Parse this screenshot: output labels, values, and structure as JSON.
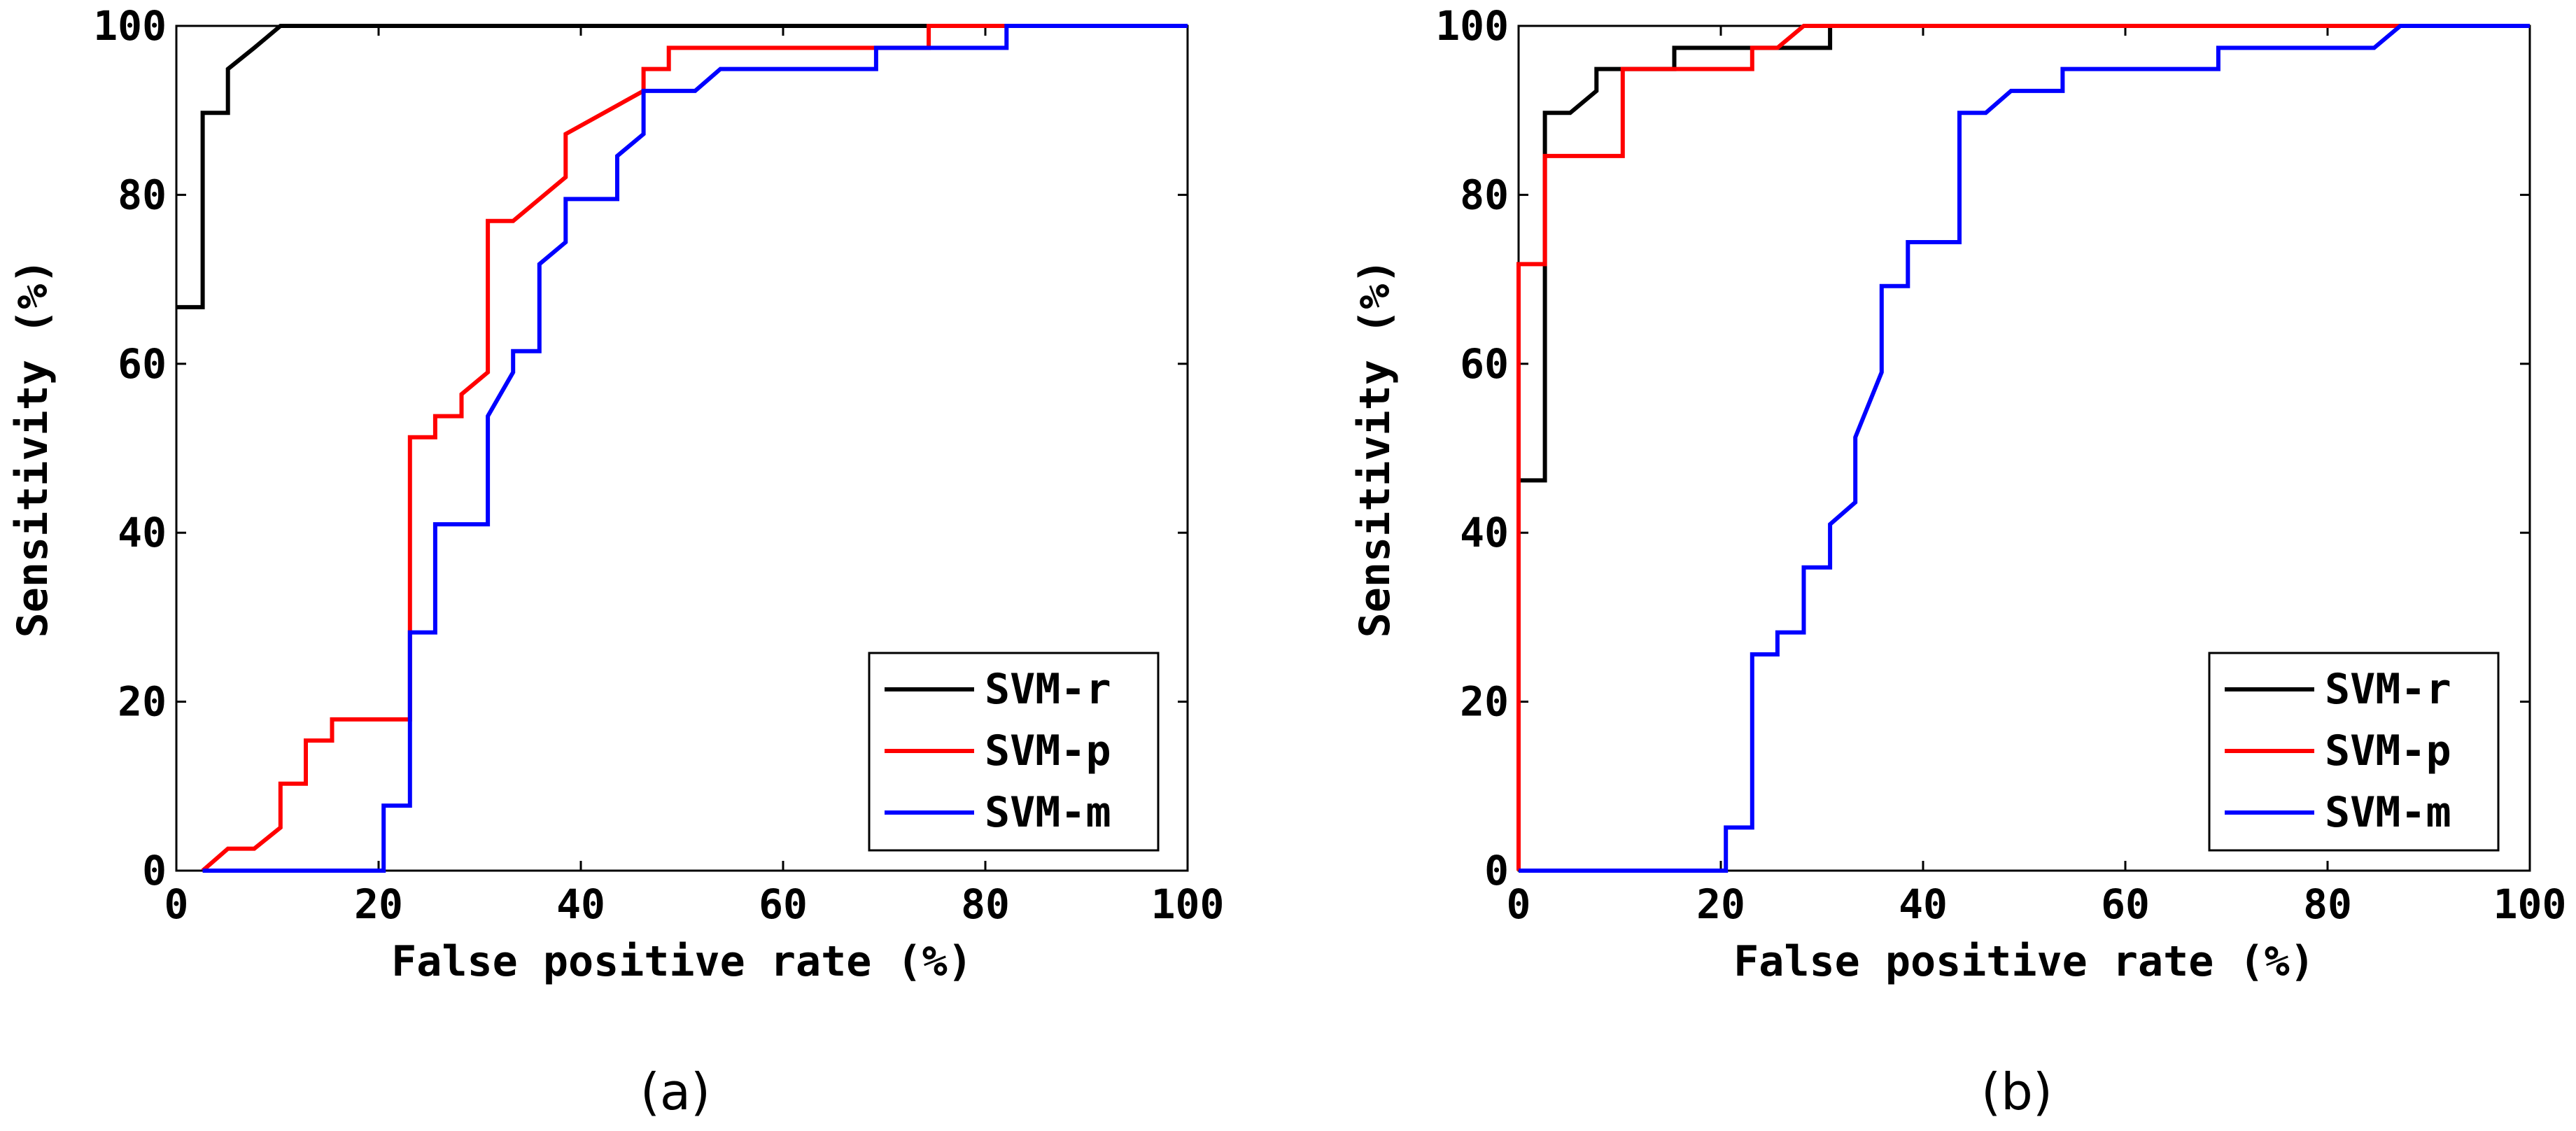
{
  "chart_data": [
    {
      "type": "line",
      "caption": "(a)",
      "xlabel": "False positive rate (%)",
      "ylabel": "Sensitivity (%)",
      "xlim": [
        0,
        100
      ],
      "ylim": [
        0,
        100
      ],
      "xticks": [
        "0",
        "20",
        "40",
        "60",
        "80",
        "100"
      ],
      "yticks": [
        "0",
        "20",
        "40",
        "60",
        "80",
        "100"
      ],
      "legend_position": "bottom-right",
      "series": [
        {
          "name": "SVM-r",
          "color": "#000000",
          "x": [
            0,
            2.6,
            2.6,
            5.1,
            5.1,
            7.7,
            10.3,
            74.4,
            100
          ],
          "y": [
            66.7,
            66.7,
            89.7,
            89.7,
            94.9,
            97.4,
            100,
            100,
            100
          ]
        },
        {
          "name": "SVM-p",
          "color": "#ff0000",
          "x": [
            2.6,
            5.1,
            7.7,
            10.3,
            10.3,
            12.8,
            12.8,
            15.4,
            15.4,
            23.1,
            23.1,
            25.6,
            25.6,
            28.2,
            28.2,
            30.8,
            30.8,
            33.3,
            38.5,
            38.5,
            46.2,
            46.2,
            48.7,
            48.7,
            74.4,
            74.4,
            100
          ],
          "y": [
            0,
            2.6,
            2.6,
            5.1,
            10.3,
            10.3,
            15.4,
            15.4,
            17.9,
            17.9,
            51.3,
            51.3,
            53.8,
            53.8,
            56.4,
            59.0,
            76.9,
            76.9,
            82.1,
            87.2,
            92.3,
            94.9,
            94.9,
            97.4,
            97.4,
            100,
            100
          ]
        },
        {
          "name": "SVM-m",
          "color": "#0000ff",
          "x": [
            2.6,
            20.5,
            20.5,
            23.1,
            23.1,
            25.6,
            25.6,
            30.8,
            30.8,
            33.3,
            33.3,
            35.9,
            35.9,
            38.5,
            38.5,
            43.6,
            43.6,
            46.2,
            46.2,
            51.3,
            53.8,
            69.2,
            69.2,
            82.1,
            82.1,
            100
          ],
          "y": [
            0,
            0,
            7.7,
            7.7,
            28.2,
            28.2,
            41.0,
            41.0,
            53.8,
            59.0,
            61.5,
            61.5,
            71.8,
            74.4,
            79.5,
            79.5,
            84.6,
            87.2,
            92.3,
            92.3,
            94.9,
            94.9,
            97.4,
            97.4,
            100,
            100
          ]
        }
      ]
    },
    {
      "type": "line",
      "caption": "(b)",
      "xlabel": "False positive rate (%)",
      "ylabel": "Sensitivity (%)",
      "xlim": [
        0,
        100
      ],
      "ylim": [
        0,
        100
      ],
      "xticks": [
        "0",
        "20",
        "40",
        "60",
        "80",
        "100"
      ],
      "yticks": [
        "0",
        "20",
        "40",
        "60",
        "80",
        "100"
      ],
      "legend_position": "bottom-right",
      "series": [
        {
          "name": "SVM-r",
          "color": "#000000",
          "x": [
            0,
            0,
            2.6,
            2.6,
            5.1,
            7.7,
            7.7,
            15.4,
            15.4,
            30.8,
            30.8,
            100
          ],
          "y": [
            0,
            46.2,
            46.2,
            89.7,
            89.7,
            92.3,
            94.9,
            94.9,
            97.4,
            97.4,
            100,
            100
          ]
        },
        {
          "name": "SVM-p",
          "color": "#ff0000",
          "x": [
            0,
            0,
            2.6,
            2.6,
            10.3,
            10.3,
            23.1,
            23.1,
            25.6,
            28.2,
            100
          ],
          "y": [
            0,
            71.8,
            71.8,
            84.6,
            84.6,
            94.9,
            94.9,
            97.4,
            97.4,
            100,
            100
          ]
        },
        {
          "name": "SVM-m",
          "color": "#0000ff",
          "x": [
            0,
            20.5,
            20.5,
            23.1,
            23.1,
            25.6,
            25.6,
            28.2,
            28.2,
            30.8,
            30.8,
            33.3,
            33.3,
            35.9,
            35.9,
            38.5,
            38.5,
            43.6,
            43.6,
            46.2,
            48.7,
            53.8,
            53.8,
            69.2,
            69.2,
            84.6,
            87.2,
            100
          ],
          "y": [
            0,
            0,
            5.1,
            5.1,
            25.6,
            25.6,
            28.2,
            28.2,
            35.9,
            35.9,
            41.0,
            43.6,
            51.3,
            59.0,
            69.2,
            69.2,
            74.4,
            74.4,
            89.7,
            89.7,
            92.3,
            92.3,
            94.9,
            94.9,
            97.4,
            97.4,
            100,
            100
          ]
        }
      ]
    }
  ]
}
